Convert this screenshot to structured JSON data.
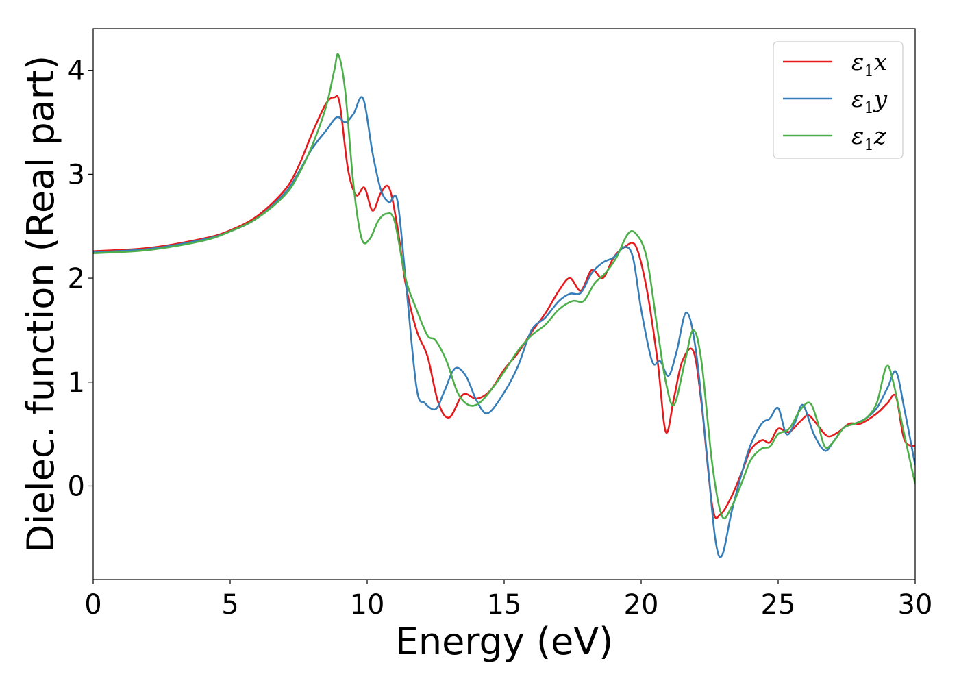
{
  "chart_data": {
    "type": "line",
    "xlabel": "Energy (eV)",
    "ylabel": "Dielec. function (Real part)",
    "xlim": [
      0,
      30
    ],
    "ylim": [
      -0.9,
      4.4
    ],
    "xticks": [
      0,
      5,
      10,
      15,
      20,
      25,
      30
    ],
    "yticks": [
      0,
      1,
      2,
      3,
      4
    ],
    "grid": false,
    "legend_position": "top-right",
    "series": [
      {
        "name": "ε₁x",
        "legend_base": "ε",
        "legend_sub": "1",
        "legend_var": "x",
        "color": "#e41a1c",
        "x": [
          0,
          2,
          4,
          5,
          6,
          7,
          7.5,
          8,
          8.5,
          8.8,
          9,
          9.3,
          9.6,
          9.9,
          10.2,
          10.5,
          10.8,
          11.1,
          11.4,
          11.8,
          12.2,
          12.6,
          13,
          13.5,
          14,
          14.5,
          15,
          15.5,
          16,
          16.5,
          17,
          17.4,
          17.8,
          18.2,
          18.6,
          19,
          19.4,
          19.8,
          20.2,
          20.6,
          20.9,
          21.2,
          21.5,
          21.9,
          22.2,
          22.6,
          22.9,
          23.3,
          23.7,
          24,
          24.4,
          24.7,
          25,
          25.4,
          25.8,
          26.1,
          26.4,
          26.8,
          27.2,
          27.6,
          28,
          28.4,
          28.7,
          29,
          29.3,
          29.6,
          30
        ],
        "y": [
          2.26,
          2.29,
          2.38,
          2.46,
          2.6,
          2.85,
          3.08,
          3.4,
          3.68,
          3.74,
          3.68,
          3.05,
          2.8,
          2.87,
          2.65,
          2.82,
          2.87,
          2.5,
          1.95,
          1.5,
          1.25,
          0.8,
          0.66,
          0.88,
          0.84,
          0.92,
          1.12,
          1.28,
          1.48,
          1.66,
          1.88,
          2,
          1.88,
          2.08,
          2,
          2.2,
          2.3,
          2.31,
          1.9,
          1.2,
          0.52,
          0.85,
          1.2,
          1.3,
          0.8,
          -0.2,
          -0.27,
          -0.1,
          0.15,
          0.35,
          0.44,
          0.42,
          0.55,
          0.52,
          0.62,
          0.68,
          0.6,
          0.48,
          0.52,
          0.6,
          0.6,
          0.66,
          0.72,
          0.8,
          0.86,
          0.45,
          0.38
        ]
      },
      {
        "name": "ε₁y",
        "legend_base": "ε",
        "legend_sub": "1",
        "legend_var": "y",
        "color": "#377eb8",
        "x": [
          0,
          2,
          4,
          5,
          6,
          7,
          7.5,
          8,
          8.5,
          8.9,
          9.2,
          9.5,
          9.85,
          10.2,
          10.5,
          10.8,
          11.1,
          11.4,
          11.8,
          12.1,
          12.5,
          12.8,
          13.2,
          13.6,
          14,
          14.4,
          15,
          15.5,
          16,
          16.5,
          17,
          17.4,
          17.8,
          18.2,
          18.6,
          19,
          19.4,
          19.7,
          20,
          20.4,
          20.7,
          21,
          21.3,
          21.65,
          22,
          22.4,
          22.7,
          22.95,
          23.3,
          23.7,
          24,
          24.4,
          24.7,
          25,
          25.3,
          25.6,
          25.9,
          26.3,
          26.7,
          27,
          27.4,
          27.8,
          28.2,
          28.6,
          29,
          29.3,
          29.6,
          30
        ],
        "y": [
          2.25,
          2.28,
          2.37,
          2.45,
          2.58,
          2.82,
          3.02,
          3.25,
          3.42,
          3.55,
          3.5,
          3.58,
          3.73,
          3.2,
          2.85,
          2.73,
          2.75,
          2.0,
          0.95,
          0.8,
          0.74,
          0.9,
          1.13,
          1.06,
          0.82,
          0.7,
          0.9,
          1.15,
          1.5,
          1.62,
          1.78,
          1.85,
          1.86,
          2.05,
          2.15,
          2.2,
          2.3,
          2.2,
          1.7,
          1.2,
          1.2,
          1.06,
          1.3,
          1.67,
          1.3,
          0.3,
          -0.5,
          -0.67,
          -0.25,
          0.15,
          0.4,
          0.6,
          0.65,
          0.75,
          0.5,
          0.6,
          0.78,
          0.5,
          0.34,
          0.42,
          0.56,
          0.6,
          0.65,
          0.75,
          0.95,
          1.1,
          0.75,
          0.2
        ]
      },
      {
        "name": "ε₁z",
        "legend_base": "ε",
        "legend_sub": "1",
        "legend_var": "z",
        "color": "#4daf4a",
        "x": [
          0,
          2,
          4,
          5,
          6,
          7,
          7.5,
          8,
          8.5,
          8.8,
          8.95,
          9.2,
          9.5,
          9.8,
          10.1,
          10.4,
          10.7,
          11,
          11.4,
          11.8,
          12.2,
          12.5,
          12.9,
          13.3,
          13.7,
          14.1,
          14.6,
          15,
          15.5,
          16,
          16.5,
          17,
          17.5,
          17.9,
          18.3,
          18.7,
          19.1,
          19.5,
          19.8,
          20.2,
          20.6,
          20.9,
          21.2,
          21.6,
          21.9,
          22.2,
          22.6,
          22.95,
          23.3,
          23.7,
          24,
          24.4,
          24.7,
          25,
          25.4,
          25.8,
          26.15,
          26.4,
          26.7,
          27,
          27.4,
          27.8,
          28.2,
          28.6,
          28.95,
          29.2,
          29.6,
          30
        ],
        "y": [
          2.24,
          2.27,
          2.36,
          2.45,
          2.58,
          2.8,
          3.0,
          3.28,
          3.65,
          4.0,
          4.15,
          3.8,
          2.9,
          2.38,
          2.38,
          2.55,
          2.62,
          2.55,
          2.0,
          1.7,
          1.45,
          1.4,
          1.2,
          0.9,
          0.78,
          0.8,
          0.95,
          1.1,
          1.3,
          1.45,
          1.55,
          1.7,
          1.78,
          1.78,
          1.95,
          2.05,
          2.2,
          2.42,
          2.43,
          2.2,
          1.5,
          1.0,
          0.78,
          1.2,
          1.5,
          1.2,
          0.2,
          -0.29,
          -0.2,
          0.05,
          0.25,
          0.36,
          0.38,
          0.5,
          0.55,
          0.73,
          0.8,
          0.65,
          0.38,
          0.42,
          0.56,
          0.6,
          0.65,
          0.8,
          1.15,
          1.0,
          0.5,
          0.02
        ]
      }
    ]
  }
}
